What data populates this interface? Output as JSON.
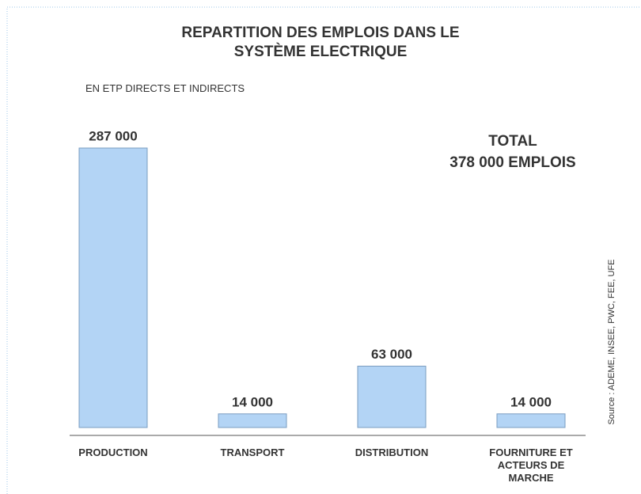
{
  "chart_data": {
    "type": "bar",
    "title": "REPARTITION DES EMPLOIS DANS LE SYSTÈME ELECTRIQUE",
    "subtitle": "EN ETP DIRECTS ET INDIRECTS",
    "annotations": [
      "TOTAL",
      "378 000 EMPLOIS"
    ],
    "source": "Source : ADEME, INSEE, PWC, FEE, UFE",
    "categories": [
      "PRODUCTION",
      "TRANSPORT",
      "DISTRIBUTION",
      "FOURNITURE ET ACTEURS DE MARCHE"
    ],
    "values": [
      287000,
      14000,
      63000,
      14000
    ],
    "value_labels": [
      "287 000",
      "14 000",
      "63 000",
      "14 000"
    ],
    "color": "#b3d4f5"
  }
}
